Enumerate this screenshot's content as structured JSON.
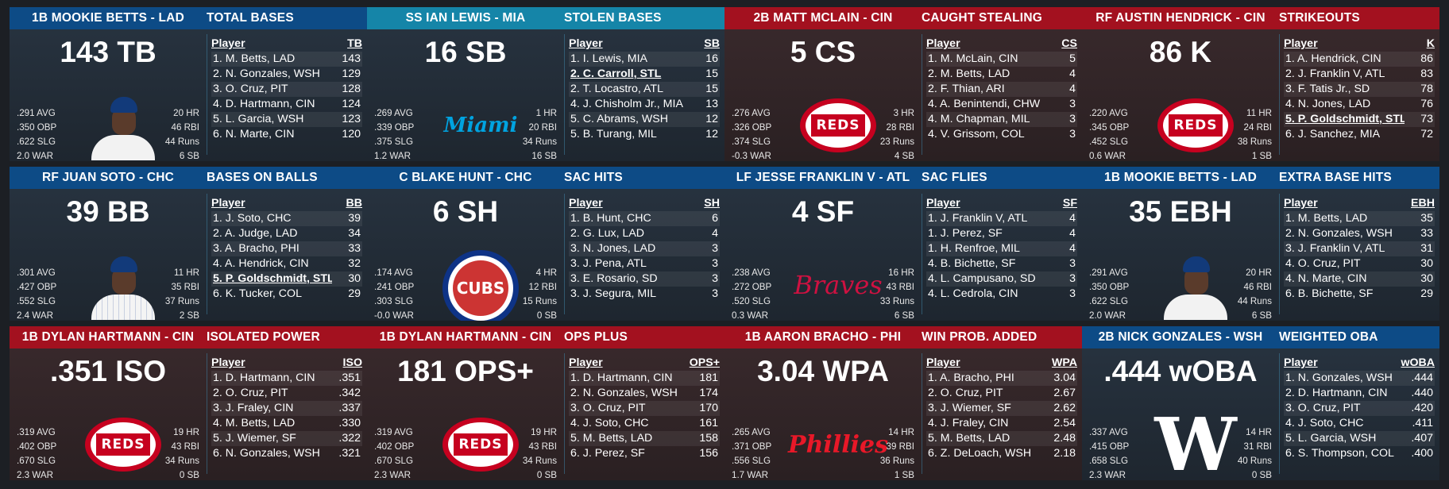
{
  "cards": [
    {
      "header": "1B MOOKIE BETTS - LAD",
      "stat_title": "TOTAL BASES",
      "headline": "143 TB",
      "logo": "dodgers-player-avatar",
      "left_stats": [
        ".291 AVG",
        ".350 OBP",
        ".622 SLG",
        "2.0 WAR"
      ],
      "right_stats": [
        "20 HR",
        "46 RBI",
        "44 Runs",
        "6 SB"
      ],
      "col_player": "Player",
      "col_stat": "TB",
      "rows": [
        [
          "1. M. Betts, LAD",
          "143"
        ],
        [
          "2. N. Gonzales, WSH",
          "129"
        ],
        [
          "3. O. Cruz, PIT",
          "128"
        ],
        [
          "4. D. Hartmann, CIN",
          "124"
        ],
        [
          "5. L. Garcia, WSH",
          "123"
        ],
        [
          "6. N. Marte, CIN",
          "120"
        ]
      ]
    },
    {
      "header": "SS IAN LEWIS - MIA",
      "stat_title": "STOLEN BASES",
      "headline": "16 SB",
      "logo": "marlins-logo",
      "logo_text": "Miami",
      "left_stats": [
        ".269 AVG",
        ".339 OBP",
        ".375 SLG",
        "1.2 WAR"
      ],
      "right_stats": [
        "1 HR",
        "20 RBI",
        "34 Runs",
        "16 SB"
      ],
      "col_player": "Player",
      "col_stat": "SB",
      "rows": [
        [
          "1. I. Lewis, MIA",
          "16"
        ],
        [
          "2. C. Carroll, STL",
          "15"
        ],
        [
          "2. T. Locastro, ATL",
          "15"
        ],
        [
          "4. J. Chisholm Jr., MIA",
          "13"
        ],
        [
          "5. C. Abrams, WSH",
          "12"
        ],
        [
          "5. B. Turang, MIL",
          "12"
        ]
      ]
    },
    {
      "header": "2B MATT MCLAIN - CIN",
      "stat_title": "CAUGHT STEALING",
      "headline": "5 CS",
      "logo": "reds-logo",
      "logo_text": "REDS",
      "left_stats": [
        ".276 AVG",
        ".326 OBP",
        ".374 SLG",
        "-0.3 WAR"
      ],
      "right_stats": [
        "3 HR",
        "28 RBI",
        "23 Runs",
        "4 SB"
      ],
      "col_player": "Player",
      "col_stat": "CS",
      "rows": [
        [
          "1. M. McLain, CIN",
          "5"
        ],
        [
          "2. M. Betts, LAD",
          "4"
        ],
        [
          "2. F. Thian, ARI",
          "4"
        ],
        [
          "4. A. Benintendi, CHW",
          "3"
        ],
        [
          "4. M. Chapman, MIL",
          "3"
        ],
        [
          "4. V. Grissom, COL",
          "3"
        ]
      ]
    },
    {
      "header": "RF AUSTIN HENDRICK - CIN",
      "stat_title": "STRIKEOUTS",
      "headline": "86 K",
      "logo": "reds-logo",
      "logo_text": "REDS",
      "left_stats": [
        ".220 AVG",
        ".345 OBP",
        ".452 SLG",
        "0.6 WAR"
      ],
      "right_stats": [
        "11 HR",
        "24 RBI",
        "38 Runs",
        "1 SB"
      ],
      "col_player": "Player",
      "col_stat": "K",
      "rows": [
        [
          "1. A. Hendrick, CIN",
          "86"
        ],
        [
          "2. J. Franklin V, ATL",
          "83"
        ],
        [
          "3. F. Tatis Jr., SD",
          "78"
        ],
        [
          "4. N. Jones, LAD",
          "76"
        ],
        [
          "5. P. Goldschmidt, STL",
          "73"
        ],
        [
          "6. J. Sanchez, MIA",
          "72"
        ]
      ]
    },
    {
      "header": "RF JUAN SOTO - CHC",
      "stat_title": "BASES ON BALLS",
      "headline": "39 BB",
      "logo": "cubs-player-avatar",
      "left_stats": [
        ".301 AVG",
        ".427 OBP",
        ".552 SLG",
        "2.4 WAR"
      ],
      "right_stats": [
        "11 HR",
        "35 RBI",
        "37 Runs",
        "2 SB"
      ],
      "col_player": "Player",
      "col_stat": "BB",
      "rows": [
        [
          "1. J. Soto, CHC",
          "39"
        ],
        [
          "2. A. Judge, LAD",
          "34"
        ],
        [
          "3. A. Bracho, PHI",
          "33"
        ],
        [
          "4. A. Hendrick, CIN",
          "32"
        ],
        [
          "5. P. Goldschmidt, STL",
          "30"
        ],
        [
          "6. K. Tucker, COL",
          "29"
        ]
      ]
    },
    {
      "header": "C BLAKE HUNT - CHC",
      "stat_title": "SAC HITS",
      "headline": "6 SH",
      "logo": "cubs-logo",
      "logo_text": "CUBS",
      "left_stats": [
        ".174 AVG",
        ".241 OBP",
        ".303 SLG",
        "-0.0 WAR"
      ],
      "right_stats": [
        "4 HR",
        "12 RBI",
        "15 Runs",
        "0 SB"
      ],
      "col_player": "Player",
      "col_stat": "SH",
      "rows": [
        [
          "1. B. Hunt, CHC",
          "6"
        ],
        [
          "2. G. Lux, LAD",
          "4"
        ],
        [
          "3. N. Jones, LAD",
          "3"
        ],
        [
          "3. J. Pena, ATL",
          "3"
        ],
        [
          "3. E. Rosario, SD",
          "3"
        ],
        [
          "3. J. Segura, MIL",
          "3"
        ]
      ]
    },
    {
      "header": "LF JESSE FRANKLIN V - ATL",
      "stat_title": "SAC FLIES",
      "headline": "4 SF",
      "logo": "braves-logo",
      "logo_text": "Braves",
      "left_stats": [
        ".238 AVG",
        ".272 OBP",
        ".520 SLG",
        "0.3 WAR"
      ],
      "right_stats": [
        "16 HR",
        "43 RBI",
        "33 Runs",
        "6 SB"
      ],
      "col_player": "Player",
      "col_stat": "SF",
      "rows": [
        [
          "1. J. Franklin V, ATL",
          "4"
        ],
        [
          "1. J. Perez, SF",
          "4"
        ],
        [
          "1. H. Renfroe, MIL",
          "4"
        ],
        [
          "4. B. Bichette, SF",
          "3"
        ],
        [
          "4. L. Campusano, SD",
          "3"
        ],
        [
          "4. L. Cedrola, CIN",
          "3"
        ]
      ]
    },
    {
      "header": "1B MOOKIE BETTS - LAD",
      "stat_title": "EXTRA BASE HITS",
      "headline": "35 EBH",
      "logo": "dodgers-player-avatar",
      "left_stats": [
        ".291 AVG",
        ".350 OBP",
        ".622 SLG",
        "2.0 WAR"
      ],
      "right_stats": [
        "20 HR",
        "46 RBI",
        "44 Runs",
        "6 SB"
      ],
      "col_player": "Player",
      "col_stat": "EBH",
      "rows": [
        [
          "1. M. Betts, LAD",
          "35"
        ],
        [
          "2. N. Gonzales, WSH",
          "33"
        ],
        [
          "3. J. Franklin V, ATL",
          "31"
        ],
        [
          "4. O. Cruz, PIT",
          "30"
        ],
        [
          "4. N. Marte, CIN",
          "30"
        ],
        [
          "6. B. Bichette, SF",
          "29"
        ]
      ]
    },
    {
      "header": "1B DYLAN HARTMANN - CIN",
      "stat_title": "ISOLATED POWER",
      "headline": ".351 ISO",
      "logo": "reds-logo",
      "logo_text": "REDS",
      "left_stats": [
        ".319 AVG",
        ".402 OBP",
        ".670 SLG",
        "2.3 WAR"
      ],
      "right_stats": [
        "19 HR",
        "43 RBI",
        "34 Runs",
        "0 SB"
      ],
      "col_player": "Player",
      "col_stat": "ISO",
      "rows": [
        [
          "1. D. Hartmann, CIN",
          ".351"
        ],
        [
          "2. O. Cruz, PIT",
          ".342"
        ],
        [
          "3. J. Fraley, CIN",
          ".337"
        ],
        [
          "4. M. Betts, LAD",
          ".330"
        ],
        [
          "5. J. Wiemer, SF",
          ".322"
        ],
        [
          "6. N. Gonzales, WSH",
          ".321"
        ]
      ]
    },
    {
      "header": "1B DYLAN HARTMANN - CIN",
      "stat_title": "OPS PLUS",
      "headline": "181 OPS+",
      "logo": "reds-logo",
      "logo_text": "REDS",
      "left_stats": [
        ".319 AVG",
        ".402 OBP",
        ".670 SLG",
        "2.3 WAR"
      ],
      "right_stats": [
        "19 HR",
        "43 RBI",
        "34 Runs",
        "0 SB"
      ],
      "col_player": "Player",
      "col_stat": "OPS+",
      "rows": [
        [
          "1. D. Hartmann, CIN",
          "181"
        ],
        [
          "2. N. Gonzales, WSH",
          "174"
        ],
        [
          "3. O. Cruz, PIT",
          "170"
        ],
        [
          "4. J. Soto, CHC",
          "161"
        ],
        [
          "5. M. Betts, LAD",
          "158"
        ],
        [
          "6. J. Perez, SF",
          "156"
        ]
      ]
    },
    {
      "header": "1B AARON BRACHO - PHI",
      "stat_title": "WIN PROB. ADDED",
      "headline": "3.04 WPA",
      "logo": "phillies-logo",
      "logo_text": "Phillies",
      "left_stats": [
        ".265 AVG",
        ".371 OBP",
        ".556 SLG",
        "1.7 WAR"
      ],
      "right_stats": [
        "14 HR",
        "39 RBI",
        "36 Runs",
        "1 SB"
      ],
      "col_player": "Player",
      "col_stat": "WPA",
      "rows": [
        [
          "1. A. Bracho, PHI",
          "3.04"
        ],
        [
          "2. O. Cruz, PIT",
          "2.67"
        ],
        [
          "3. J. Wiemer, SF",
          "2.62"
        ],
        [
          "4. J. Fraley, CIN",
          "2.54"
        ],
        [
          "5. M. Betts, LAD",
          "2.48"
        ],
        [
          "6. Z. DeLoach, WSH",
          "2.18"
        ]
      ]
    },
    {
      "header": "2B NICK GONZALES - WSH",
      "stat_title": "WEIGHTED OBA",
      "headline": ".444 wOBA",
      "logo": "nationals-logo",
      "logo_text": "W",
      "left_stats": [
        ".337 AVG",
        ".415 OBP",
        ".658 SLG",
        "2.3 WAR"
      ],
      "right_stats": [
        "14 HR",
        "31 RBI",
        "40 Runs",
        "0 SB"
      ],
      "col_player": "Player",
      "col_stat": "wOBA",
      "rows": [
        [
          "1. N. Gonzales, WSH",
          ".444"
        ],
        [
          "2. D. Hartmann, CIN",
          ".440"
        ],
        [
          "3. O. Cruz, PIT",
          ".420"
        ],
        [
          "4. J. Soto, CHC",
          ".411"
        ],
        [
          "5. L. Garcia, WSH",
          ".407"
        ],
        [
          "6. S. Thompson, COL",
          ".400"
        ]
      ]
    }
  ],
  "card_styles": [
    "blue",
    "teal",
    "red",
    "red",
    "blue",
    "blue",
    "blue",
    "blue",
    "red",
    "red",
    "red",
    "blue"
  ],
  "highlight_rows": {
    "1": 1,
    "3": 4,
    "4": 4
  }
}
